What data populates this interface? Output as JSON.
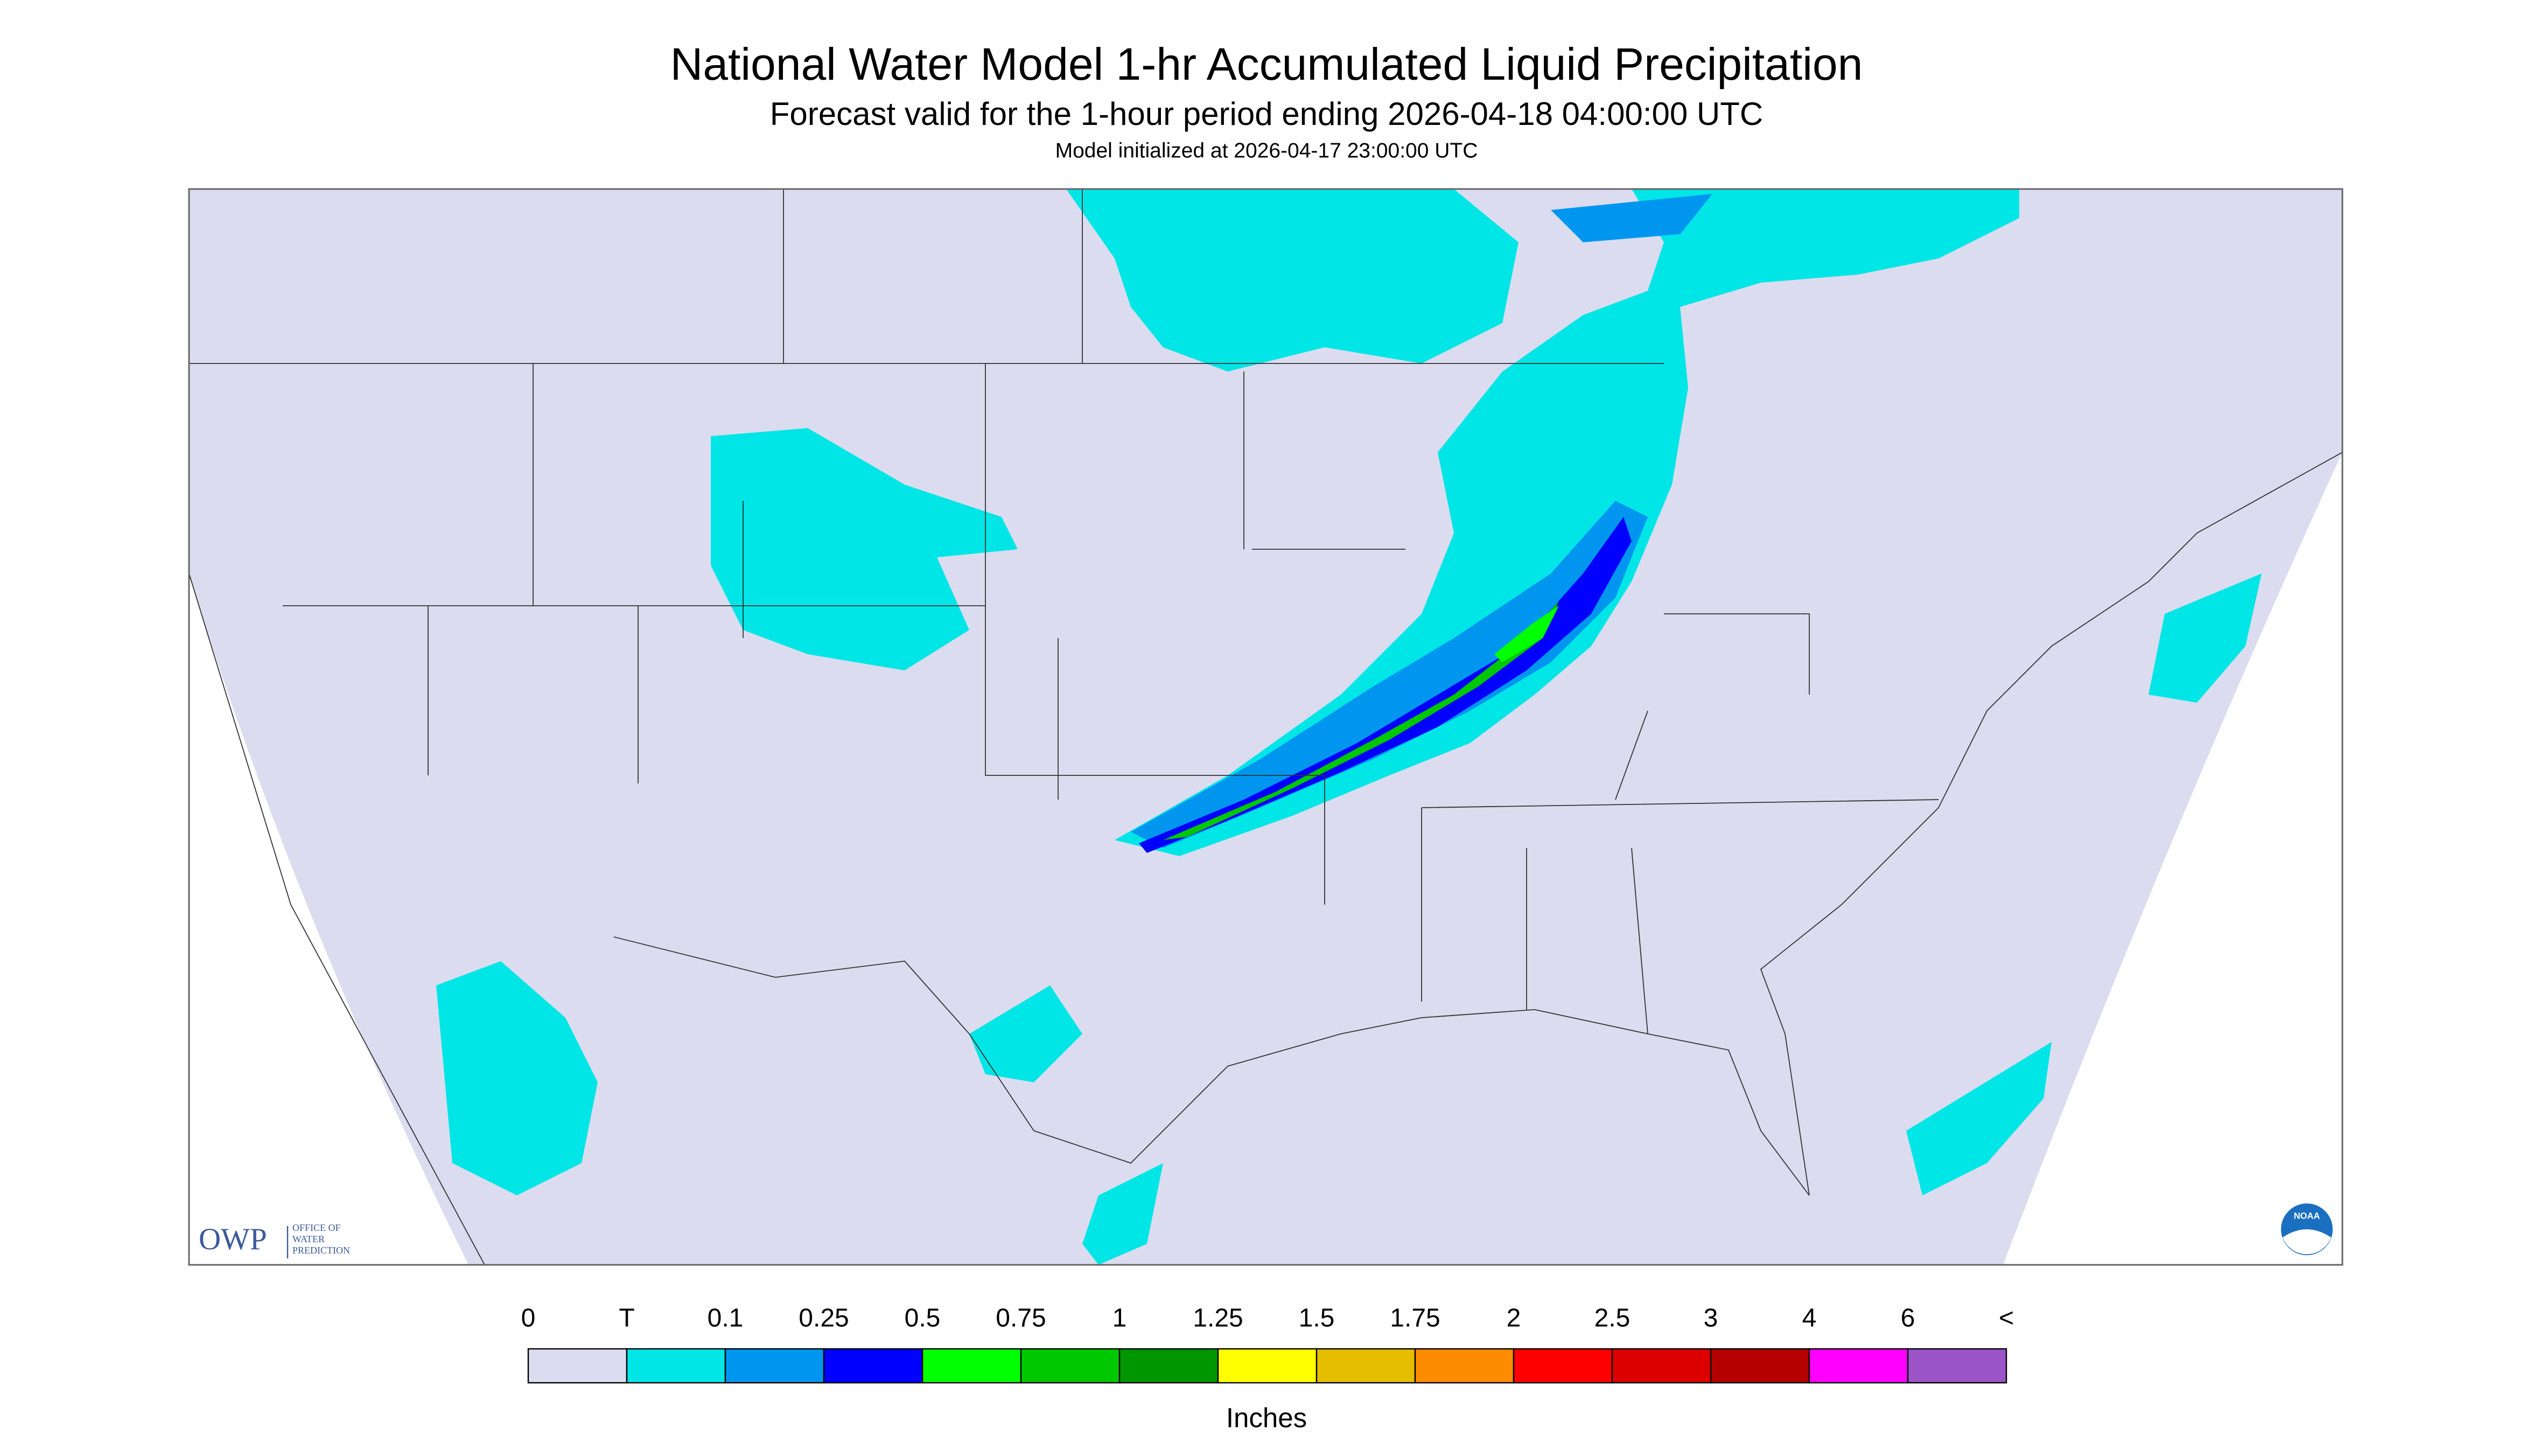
{
  "header": {
    "title": "National Water Model 1-hr Accumulated Liquid Precipitation",
    "subtitle": "Forecast valid for the 1-hour period ending 2026-04-18 04:00:00 UTC",
    "initialized": "Model initialized at 2026-04-17 23:00:00 UTC"
  },
  "logos": {
    "owp_abbr": "OWP",
    "owp_name": [
      "OFFICE OF",
      "WATER",
      "PREDICTION"
    ],
    "noaa": "NOAA"
  },
  "legend": {
    "labels": [
      "0",
      "T",
      "0.1",
      "0.25",
      "0.5",
      "0.75",
      "1",
      "1.25",
      "1.5",
      "1.75",
      "2",
      "2.5",
      "3",
      "4",
      "6",
      "<"
    ],
    "colors": [
      "#dcdcf0",
      "#00e6e6",
      "#0096f0",
      "#0000ff",
      "#00ff00",
      "#00c800",
      "#009600",
      "#ffff00",
      "#e6be00",
      "#ff8c00",
      "#ff0000",
      "#dc0000",
      "#b40000",
      "#ff00ff",
      "#9b55c8"
    ],
    "unit": "Inches"
  }
}
